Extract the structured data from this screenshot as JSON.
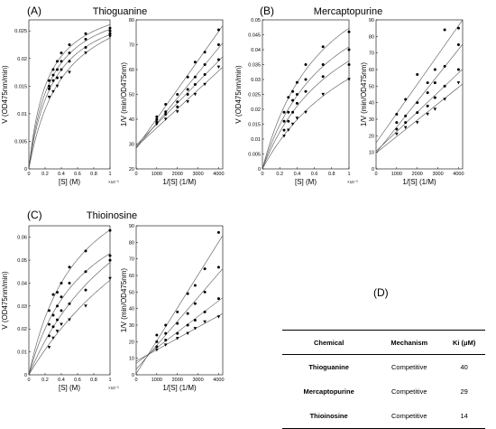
{
  "panels": [
    {
      "letter": "(A)",
      "title": "Thioguanine"
    },
    {
      "letter": "(B)",
      "title": "Mercaptopurine"
    },
    {
      "letter": "(C)",
      "title": "Thioinosine"
    }
  ],
  "table": {
    "letter": "(D)",
    "headers": [
      "Chemical",
      "Mechanism",
      "Ki (μM)"
    ],
    "rows": [
      [
        "Thioguanine",
        "Competitive",
        "40"
      ],
      [
        "Mercaptopurine",
        "Competitive",
        "29"
      ],
      [
        "Thioinosine",
        "Competitive",
        "14"
      ]
    ]
  },
  "chart_data": [
    {
      "type": "scatter",
      "panel": "(A)",
      "title": "Thioguanine",
      "plot": "Michaelis-Menten",
      "xlabel": "[S] (M)",
      "ylabel": "V (OD475nm/min)",
      "x_multiplier": "×10⁻³",
      "xlim": [
        0,
        1
      ],
      "ylim": [
        0,
        0.027
      ],
      "xticks": [
        "0",
        "0.2",
        "0.4",
        "0.6",
        "0.8",
        "1"
      ],
      "yticks": [
        "0",
        "0.005",
        "0.01",
        "0.015",
        "0.02",
        "0.025"
      ],
      "x": [
        0.25,
        0.3,
        0.35,
        0.4,
        0.5,
        0.7,
        1.0
      ],
      "series": [
        {
          "values": [
            0.016,
            0.018,
            0.0195,
            0.021,
            0.0225,
            0.0245,
            0.0255
          ]
        },
        {
          "values": [
            0.015,
            0.017,
            0.018,
            0.0195,
            0.021,
            0.0235,
            0.025
          ]
        },
        {
          "values": [
            0.0145,
            0.016,
            0.0165,
            0.018,
            0.0195,
            0.022,
            0.0245
          ]
        },
        {
          "values": [
            0.013,
            0.014,
            0.015,
            0.0165,
            0.0175,
            0.021,
            0.024
          ]
        }
      ]
    },
    {
      "type": "scatter",
      "panel": "(A)",
      "plot": "Lineweaver-Burk",
      "xlabel": "1/[S] (1/M)",
      "ylabel": "1/V (min/OD475nm)",
      "xlim": [
        0,
        4200
      ],
      "ylim": [
        20,
        80
      ],
      "xticks": [
        "0",
        "1000",
        "2000",
        "3000",
        "4000"
      ],
      "yticks": [
        "20",
        "30",
        "40",
        "50",
        "60",
        "70",
        "80"
      ],
      "x": [
        1000,
        1430,
        2000,
        2500,
        2860,
        3330,
        4000
      ],
      "series": [
        {
          "values": [
            41,
            46,
            50,
            57,
            63,
            67,
            76
          ]
        },
        {
          "values": [
            40,
            43,
            47,
            52,
            57,
            62,
            70
          ]
        },
        {
          "values": [
            39,
            42,
            45,
            50,
            54,
            58,
            64
          ]
        },
        {
          "values": [
            38,
            40,
            43,
            47,
            50,
            54,
            61
          ]
        }
      ]
    },
    {
      "type": "scatter",
      "panel": "(B)",
      "title": "Mercaptopurine",
      "plot": "Michaelis-Menten",
      "xlabel": "[S] (M)",
      "ylabel": "V (OD475nm/min)",
      "x_multiplier": "×10⁻³",
      "xlim": [
        0,
        1
      ],
      "ylim": [
        0,
        0.05
      ],
      "xticks": [
        "0",
        "0.2",
        "0.4",
        "0.6",
        "0.8",
        "1"
      ],
      "yticks": [
        "0",
        "0.005",
        "0.01",
        "0.015",
        "0.02",
        "0.025",
        "0.03",
        "0.035",
        "0.04",
        "0.045",
        "0.05"
      ],
      "x": [
        0.25,
        0.3,
        0.35,
        0.4,
        0.5,
        0.7,
        1.0
      ],
      "series": [
        {
          "values": [
            0.019,
            0.024,
            0.026,
            0.029,
            0.035,
            0.041,
            0.046
          ]
        },
        {
          "values": [
            0.016,
            0.019,
            0.023,
            0.025,
            0.03,
            0.035,
            0.04
          ]
        },
        {
          "values": [
            0.013,
            0.016,
            0.019,
            0.022,
            0.026,
            0.031,
            0.035
          ]
        },
        {
          "values": [
            0.011,
            0.013,
            0.015,
            0.017,
            0.019,
            0.025,
            0.03
          ]
        }
      ]
    },
    {
      "type": "scatter",
      "panel": "(B)",
      "plot": "Lineweaver-Burk",
      "xlabel": "1/[S] (1/M)",
      "ylabel": "1/V (min/OD475nm)",
      "xlim": [
        0,
        4200
      ],
      "ylim": [
        0,
        90
      ],
      "xticks": [
        "0",
        "1000",
        "2000",
        "3000",
        "4000"
      ],
      "yticks": [
        "0",
        "10",
        "20",
        "30",
        "40",
        "50",
        "60",
        "70",
        "80",
        "90"
      ],
      "x": [
        1000,
        1430,
        2000,
        2500,
        2860,
        3330,
        4000
      ],
      "series": [
        {
          "values": [
            33,
            42,
            57,
            52,
            60,
            84,
            85
          ]
        },
        {
          "values": [
            28,
            32,
            40,
            46,
            52,
            62,
            75
          ]
        },
        {
          "values": [
            24,
            28,
            34,
            38,
            43,
            50,
            60
          ]
        },
        {
          "values": [
            21,
            25,
            28,
            33,
            36,
            42,
            52
          ]
        }
      ]
    },
    {
      "type": "scatter",
      "panel": "(C)",
      "title": "Thioinosine",
      "plot": "Michaelis-Menten",
      "xlabel": "[S] (M)",
      "ylabel": "V (OD475nm/min)",
      "x_multiplier": "×10⁻³",
      "xlim": [
        0,
        1
      ],
      "ylim": [
        0,
        0.065
      ],
      "xticks": [
        "0",
        "0.2",
        "0.4",
        "0.6",
        "0.8",
        "1"
      ],
      "yticks": [
        "0",
        "0.01",
        "0.02",
        "0.03",
        "0.04",
        "0.05",
        "0.06"
      ],
      "x": [
        0.25,
        0.3,
        0.35,
        0.4,
        0.5,
        0.7,
        1.0
      ],
      "series": [
        {
          "values": [
            0.028,
            0.035,
            0.036,
            0.04,
            0.047,
            0.054,
            0.063
          ]
        },
        {
          "values": [
            0.022,
            0.026,
            0.03,
            0.034,
            0.04,
            0.045,
            0.052
          ]
        },
        {
          "values": [
            0.017,
            0.021,
            0.024,
            0.028,
            0.031,
            0.037,
            0.05
          ]
        },
        {
          "values": [
            0.012,
            0.016,
            0.019,
            0.022,
            0.024,
            0.03,
            0.042
          ]
        }
      ]
    },
    {
      "type": "scatter",
      "panel": "(C)",
      "plot": "Lineweaver-Burk",
      "xlabel": "1/[S] (1/M)",
      "ylabel": "1/V (min/OD475nm)",
      "xlim": [
        0,
        4200
      ],
      "ylim": [
        0,
        90
      ],
      "xticks": [
        "0",
        "1000",
        "2000",
        "3000",
        "4000"
      ],
      "yticks": [
        "0",
        "10",
        "20",
        "30",
        "40",
        "50",
        "60",
        "70",
        "80",
        "90"
      ],
      "x": [
        1000,
        1430,
        2000,
        2500,
        2860,
        3330,
        4000
      ],
      "series": [
        {
          "values": [
            24,
            30,
            38,
            49,
            54,
            64,
            86
          ]
        },
        {
          "values": [
            20,
            25,
            31,
            37,
            43,
            50,
            65
          ]
        },
        {
          "values": [
            17,
            21,
            25,
            30,
            33,
            38,
            46
          ]
        },
        {
          "values": [
            15,
            18,
            22,
            25,
            28,
            32,
            35
          ]
        }
      ]
    }
  ]
}
